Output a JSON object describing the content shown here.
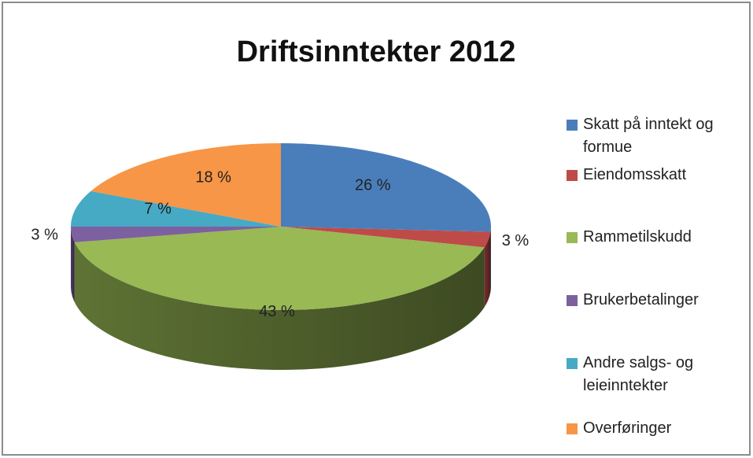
{
  "chart_data": {
    "type": "pie",
    "title": "Driftsinntekter 2012",
    "categories": [
      "Skatt på inntekt og formue",
      "Eiendomsskatt",
      "Rammetilskudd",
      "Brukerbetalinger",
      "Andre salgs- og leieinntekter",
      "Overføringer"
    ],
    "values": [
      26,
      3,
      43,
      3,
      7,
      18
    ],
    "value_labels": [
      "26 %",
      "3 %",
      "43 %",
      "3 %",
      "7 %",
      "18 %"
    ],
    "colors": [
      "#4a7ebb",
      "#be4b48",
      "#98b954",
      "#7d60a0",
      "#46aac5",
      "#f79646"
    ]
  }
}
